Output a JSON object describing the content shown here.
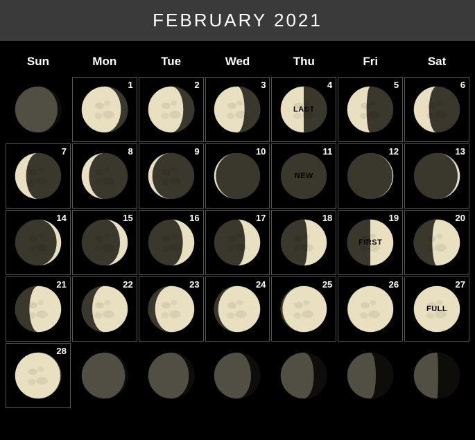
{
  "title": "FEBRUARY 2021",
  "background_color": "#000000",
  "header_bg": "#3a3a3a",
  "text_color": "#ffffff",
  "cell_border_color": "#555555",
  "moon_lit_color": "#e8e0c0",
  "moon_dark_color": "#3a372c",
  "moon_dim_color": "#2a271e",
  "moon_highlight": "#f5f0d8",
  "day_headers": [
    "Sun",
    "Mon",
    "Tue",
    "Wed",
    "Thu",
    "Fri",
    "Sat"
  ],
  "cells": [
    {
      "day": null,
      "in_month": false,
      "illum": 0.92,
      "waxing": false,
      "visible": false
    },
    {
      "day": 1,
      "in_month": true,
      "illum": 0.85,
      "waxing": false,
      "label": ""
    },
    {
      "day": 2,
      "in_month": true,
      "illum": 0.76,
      "waxing": false,
      "label": ""
    },
    {
      "day": 3,
      "in_month": true,
      "illum": 0.66,
      "waxing": false,
      "label": ""
    },
    {
      "day": 4,
      "in_month": true,
      "illum": 0.5,
      "waxing": false,
      "label": "LAST"
    },
    {
      "day": 5,
      "in_month": true,
      "illum": 0.42,
      "waxing": false,
      "label": ""
    },
    {
      "day": 6,
      "in_month": true,
      "illum": 0.33,
      "waxing": false,
      "label": ""
    },
    {
      "day": 7,
      "in_month": true,
      "illum": 0.24,
      "waxing": false,
      "label": ""
    },
    {
      "day": 8,
      "in_month": true,
      "illum": 0.16,
      "waxing": false,
      "label": ""
    },
    {
      "day": 9,
      "in_month": true,
      "illum": 0.09,
      "waxing": false,
      "label": ""
    },
    {
      "day": 10,
      "in_month": true,
      "illum": 0.04,
      "waxing": false,
      "label": ""
    },
    {
      "day": 11,
      "in_month": true,
      "illum": 0.0,
      "waxing": false,
      "label": "NEW"
    },
    {
      "day": 12,
      "in_month": true,
      "illum": 0.02,
      "waxing": true,
      "label": ""
    },
    {
      "day": 13,
      "in_month": true,
      "illum": 0.05,
      "waxing": true,
      "label": ""
    },
    {
      "day": 14,
      "in_month": true,
      "illum": 0.1,
      "waxing": true,
      "label": ""
    },
    {
      "day": 15,
      "in_month": true,
      "illum": 0.17,
      "waxing": true,
      "label": ""
    },
    {
      "day": 16,
      "in_month": true,
      "illum": 0.25,
      "waxing": true,
      "label": ""
    },
    {
      "day": 17,
      "in_month": true,
      "illum": 0.33,
      "waxing": true,
      "label": ""
    },
    {
      "day": 18,
      "in_month": true,
      "illum": 0.42,
      "waxing": true,
      "label": ""
    },
    {
      "day": 19,
      "in_month": true,
      "illum": 0.5,
      "waxing": true,
      "label": "FIRST"
    },
    {
      "day": 20,
      "in_month": true,
      "illum": 0.6,
      "waxing": true,
      "label": ""
    },
    {
      "day": 21,
      "in_month": true,
      "illum": 0.69,
      "waxing": true,
      "label": ""
    },
    {
      "day": 22,
      "in_month": true,
      "illum": 0.77,
      "waxing": true,
      "label": ""
    },
    {
      "day": 23,
      "in_month": true,
      "illum": 0.85,
      "waxing": true,
      "label": ""
    },
    {
      "day": 24,
      "in_month": true,
      "illum": 0.91,
      "waxing": true,
      "label": ""
    },
    {
      "day": 25,
      "in_month": true,
      "illum": 0.96,
      "waxing": true,
      "label": ""
    },
    {
      "day": 26,
      "in_month": true,
      "illum": 0.99,
      "waxing": true,
      "label": ""
    },
    {
      "day": 27,
      "in_month": true,
      "illum": 1.0,
      "waxing": true,
      "label": "FULL"
    },
    {
      "day": 28,
      "in_month": true,
      "illum": 0.98,
      "waxing": false,
      "label": ""
    },
    {
      "day": null,
      "in_month": false,
      "illum": 0.94,
      "waxing": false,
      "visible": false
    },
    {
      "day": null,
      "in_month": false,
      "illum": 0.88,
      "waxing": false,
      "visible": false
    },
    {
      "day": null,
      "in_month": false,
      "illum": 0.8,
      "waxing": false,
      "visible": false
    },
    {
      "day": null,
      "in_month": false,
      "illum": 0.72,
      "waxing": false,
      "visible": false
    },
    {
      "day": null,
      "in_month": false,
      "illum": 0.62,
      "waxing": false,
      "visible": false
    },
    {
      "day": null,
      "in_month": false,
      "illum": 0.53,
      "waxing": false,
      "visible": false
    }
  ]
}
